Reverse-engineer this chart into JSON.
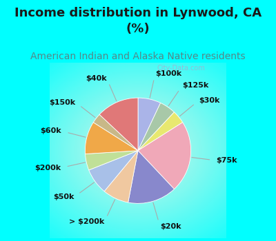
{
  "title": "Income distribution in Lynwood, CA\n(%)",
  "subtitle": "American Indian and Alaska Native residents",
  "title_fontsize": 13,
  "subtitle_fontsize": 10,
  "title_color": "#1a1a1a",
  "subtitle_color": "#558888",
  "background_color": "#00FFFF",
  "watermark": "City-Data.com",
  "slices": [
    {
      "label": "$100k",
      "value": 7,
      "color": "#aab4e8"
    },
    {
      "label": "$125k",
      "value": 5,
      "color": "#a8c8a8"
    },
    {
      "label": "$30k",
      "value": 4,
      "color": "#e8e870"
    },
    {
      "label": "$75k",
      "value": 22,
      "color": "#f0a8b8"
    },
    {
      "label": "$20k",
      "value": 15,
      "color": "#8888cc"
    },
    {
      "label": "> $200k",
      "value": 8,
      "color": "#f0c8a0"
    },
    {
      "label": "$50k",
      "value": 8,
      "color": "#a8c0e8"
    },
    {
      "label": "$200k",
      "value": 5,
      "color": "#c0e098"
    },
    {
      "label": "$60k",
      "value": 10,
      "color": "#f0a848"
    },
    {
      "label": "$150k",
      "value": 3,
      "color": "#c8b888"
    },
    {
      "label": "$40k",
      "value": 13,
      "color": "#e07878"
    }
  ],
  "label_fontsize": 8,
  "label_color": "#111111",
  "startangle": 90
}
